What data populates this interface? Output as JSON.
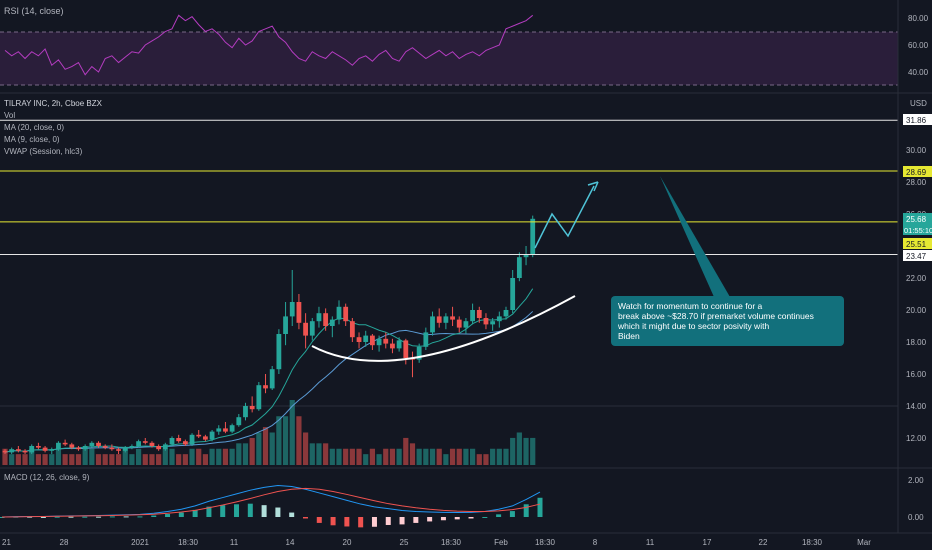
{
  "colors": {
    "background": "#131722",
    "grid": "#1f2330",
    "up": "#26a69a",
    "down": "#ef5350",
    "ma20": "#5b9bd5",
    "ma9": "#26a69a",
    "rsi": "#b43cc0",
    "rsi_band": "#2a1e3a",
    "macd": "#2196f3",
    "signal": "#ef5350",
    "yellow_line": "#e6e832",
    "white_line": "#e6e6e6",
    "annotation_bg": "#12707c",
    "arrow": "#4fc3d7"
  },
  "rsi_panel": {
    "title": "RSI (14, close)",
    "ticks": [
      "80.00",
      "60.00",
      "40.00"
    ]
  },
  "price_panel": {
    "currency": "USD",
    "legend": [
      "TILRAY INC, 2h, Cboe BZX",
      "Vol",
      "MA (20, close, 0)",
      "MA (9, close, 0)",
      "VWAP (Session, hlc3)"
    ],
    "ticks": [
      "30.00",
      "28.00",
      "26.00",
      "22.00",
      "20.00",
      "18.00",
      "16.00",
      "14.00",
      "12.00"
    ],
    "price_tags": [
      {
        "label": "31.86",
        "kind": "white"
      },
      {
        "label": "28.69",
        "kind": "yellow"
      },
      {
        "label": "25.68",
        "kind": "green"
      },
      {
        "label": "01:55:10",
        "kind": "time"
      },
      {
        "label": "25.51",
        "kind": "yellow"
      },
      {
        "label": "23.47",
        "kind": "white"
      }
    ]
  },
  "annotation": {
    "text": "Watch for momentum to continue for a\nbreak above ~$28.70 if  premarket volume continues\nwhich it might due to sector posivity with\nBiden"
  },
  "macd_panel": {
    "title": "MACD (12, 26, close, 9)",
    "ticks": [
      "2.00",
      "0.00"
    ]
  },
  "time_axis": {
    "labels": [
      "21",
      "28",
      "2021",
      "18:30",
      "11",
      "14",
      "20",
      "25",
      "18:30",
      "Feb",
      "18:30",
      "8",
      "11",
      "17",
      "22",
      "18:30",
      "Mar"
    ]
  },
  "chart_data": {
    "type": "candlestick",
    "symbol": "TILRAY INC, 2h, Cboe BZX",
    "y_range": [
      11,
      33
    ],
    "horizontal_levels": [
      31.86,
      28.69,
      25.51,
      23.47
    ],
    "last_price": 25.68,
    "candles_ohlc": [
      [
        11.2,
        11.3,
        11.0,
        11.1
      ],
      [
        11.1,
        11.4,
        11.0,
        11.3
      ],
      [
        11.3,
        11.5,
        11.1,
        11.2
      ],
      [
        11.2,
        11.3,
        11.0,
        11.1
      ],
      [
        11.1,
        11.6,
        11.0,
        11.5
      ],
      [
        11.5,
        11.7,
        11.3,
        11.4
      ],
      [
        11.4,
        11.5,
        11.1,
        11.2
      ],
      [
        11.2,
        11.4,
        11.0,
        11.3
      ],
      [
        11.3,
        11.8,
        11.2,
        11.7
      ],
      [
        11.7,
        11.9,
        11.5,
        11.6
      ],
      [
        11.6,
        11.7,
        11.3,
        11.4
      ],
      [
        11.4,
        11.5,
        11.2,
        11.3
      ],
      [
        11.3,
        11.6,
        11.2,
        11.5
      ],
      [
        11.5,
        11.8,
        11.4,
        11.7
      ],
      [
        11.7,
        11.8,
        11.4,
        11.5
      ],
      [
        11.5,
        11.6,
        11.3,
        11.4
      ],
      [
        11.4,
        11.6,
        11.2,
        11.3
      ],
      [
        11.3,
        11.4,
        11.0,
        11.2
      ],
      [
        11.2,
        11.5,
        11.1,
        11.4
      ],
      [
        11.4,
        11.6,
        11.3,
        11.5
      ],
      [
        11.5,
        11.9,
        11.4,
        11.8
      ],
      [
        11.8,
        12.0,
        11.6,
        11.7
      ],
      [
        11.7,
        11.8,
        11.4,
        11.5
      ],
      [
        11.5,
        11.6,
        11.2,
        11.3
      ],
      [
        11.3,
        11.7,
        11.2,
        11.6
      ],
      [
        11.6,
        12.1,
        11.5,
        12.0
      ],
      [
        12.0,
        12.2,
        11.7,
        11.8
      ],
      [
        11.8,
        11.9,
        11.5,
        11.6
      ],
      [
        11.6,
        12.3,
        11.5,
        12.2
      ],
      [
        12.2,
        12.5,
        12.0,
        12.1
      ],
      [
        12.1,
        12.2,
        11.8,
        11.9
      ],
      [
        11.9,
        12.5,
        11.8,
        12.4
      ],
      [
        12.4,
        12.8,
        12.2,
        12.6
      ],
      [
        12.6,
        13.0,
        12.3,
        12.4
      ],
      [
        12.4,
        12.9,
        12.3,
        12.8
      ],
      [
        12.8,
        13.5,
        12.7,
        13.3
      ],
      [
        13.3,
        14.2,
        13.1,
        14.0
      ],
      [
        14.0,
        14.6,
        13.6,
        13.8
      ],
      [
        13.8,
        15.5,
        13.7,
        15.3
      ],
      [
        15.3,
        16.0,
        14.8,
        15.1
      ],
      [
        15.1,
        16.5,
        15.0,
        16.3
      ],
      [
        16.3,
        18.8,
        16.0,
        18.5
      ],
      [
        18.5,
        20.5,
        17.8,
        19.6
      ],
      [
        19.6,
        22.5,
        19.0,
        20.5
      ],
      [
        20.5,
        21.0,
        18.8,
        19.2
      ],
      [
        19.2,
        19.8,
        17.6,
        18.4
      ],
      [
        18.4,
        19.5,
        18.1,
        19.3
      ],
      [
        19.3,
        20.2,
        18.9,
        19.8
      ],
      [
        19.8,
        20.1,
        18.7,
        19.0
      ],
      [
        19.0,
        19.6,
        18.3,
        19.4
      ],
      [
        19.4,
        20.6,
        19.1,
        20.2
      ],
      [
        20.2,
        20.4,
        19.0,
        19.3
      ],
      [
        19.3,
        19.5,
        18.0,
        18.3
      ],
      [
        18.3,
        18.6,
        17.6,
        18.0
      ],
      [
        18.0,
        18.7,
        17.7,
        18.4
      ],
      [
        18.4,
        18.5,
        17.5,
        17.8
      ],
      [
        17.8,
        18.4,
        17.4,
        18.2
      ],
      [
        18.2,
        18.6,
        17.6,
        17.9
      ],
      [
        17.9,
        18.2,
        17.3,
        17.6
      ],
      [
        17.6,
        18.3,
        17.4,
        18.1
      ],
      [
        18.1,
        18.2,
        16.6,
        17.0
      ],
      [
        17.0,
        17.4,
        15.8,
        16.9
      ],
      [
        16.9,
        17.9,
        16.7,
        17.7
      ],
      [
        17.7,
        18.9,
        17.5,
        18.6
      ],
      [
        18.6,
        19.9,
        18.4,
        19.6
      ],
      [
        19.6,
        20.1,
        18.9,
        19.2
      ],
      [
        19.2,
        19.8,
        18.8,
        19.6
      ],
      [
        19.6,
        20.2,
        19.0,
        19.4
      ],
      [
        19.4,
        19.6,
        18.6,
        18.9
      ],
      [
        18.9,
        19.5,
        18.5,
        19.3
      ],
      [
        19.3,
        20.4,
        19.1,
        20.0
      ],
      [
        20.0,
        20.2,
        19.2,
        19.5
      ],
      [
        19.5,
        19.8,
        18.8,
        19.1
      ],
      [
        19.1,
        19.5,
        18.7,
        19.3
      ],
      [
        19.3,
        19.9,
        18.9,
        19.6
      ],
      [
        19.6,
        20.2,
        19.4,
        20.0
      ],
      [
        20.0,
        22.5,
        19.8,
        22.0
      ],
      [
        22.0,
        23.6,
        21.8,
        23.3
      ],
      [
        23.3,
        24.0,
        22.8,
        23.5
      ],
      [
        23.5,
        25.9,
        23.3,
        25.7
      ]
    ],
    "volume": [
      3,
      2,
      2,
      2,
      3,
      2,
      2,
      2,
      3,
      2,
      2,
      2,
      3,
      3,
      2,
      2,
      2,
      2,
      3,
      2,
      3,
      2,
      2,
      2,
      3,
      3,
      2,
      2,
      3,
      3,
      2,
      3,
      3,
      3,
      3,
      4,
      4,
      5,
      6,
      7,
      6,
      9,
      9,
      12,
      9,
      6,
      4,
      4,
      4,
      3,
      3,
      3,
      3,
      3,
      2,
      3,
      2,
      3,
      3,
      3,
      5,
      4,
      3,
      3,
      3,
      3,
      2,
      3,
      3,
      3,
      3,
      2,
      2,
      3,
      3,
      3,
      5,
      6,
      5,
      5
    ],
    "macd_line": [
      0.0,
      0.02,
      0.03,
      0.03,
      0.05,
      0.06,
      0.07,
      0.08,
      0.1,
      0.12,
      0.14,
      0.2,
      0.3,
      0.42,
      0.6,
      0.85,
      1.05,
      1.25,
      1.45,
      1.6,
      1.7,
      1.65,
      1.5,
      1.3,
      1.1,
      0.9,
      0.7,
      0.55,
      0.45,
      0.35,
      0.3,
      0.27,
      0.25,
      0.24,
      0.25,
      0.3,
      0.42,
      0.6,
      0.95,
      1.35
    ],
    "signal_line": [
      0.0,
      0.01,
      0.02,
      0.03,
      0.04,
      0.05,
      0.06,
      0.07,
      0.08,
      0.1,
      0.12,
      0.15,
      0.2,
      0.27,
      0.36,
      0.5,
      0.65,
      0.82,
      1.0,
      1.2,
      1.38,
      1.5,
      1.55,
      1.5,
      1.38,
      1.22,
      1.05,
      0.88,
      0.72,
      0.6,
      0.5,
      0.42,
      0.36,
      0.32,
      0.3,
      0.3,
      0.33,
      0.4,
      0.52,
      0.7
    ],
    "rsi": [
      56,
      52,
      55,
      50,
      55,
      52,
      57,
      45,
      49,
      42,
      44,
      47,
      38,
      44,
      40,
      50,
      52,
      47,
      51,
      55,
      54,
      60,
      63,
      66,
      70,
      72,
      82,
      78,
      81,
      75,
      70,
      72,
      68,
      62,
      58,
      65,
      60,
      63,
      70,
      72,
      74,
      66,
      62,
      55,
      50,
      48,
      55,
      52,
      50,
      55,
      52,
      49,
      45,
      50,
      52,
      48,
      53,
      56,
      50,
      48,
      55,
      58,
      54,
      50,
      53,
      56,
      52,
      55,
      50,
      53,
      55,
      52,
      56,
      58,
      60,
      72,
      74,
      76,
      78,
      82
    ]
  }
}
